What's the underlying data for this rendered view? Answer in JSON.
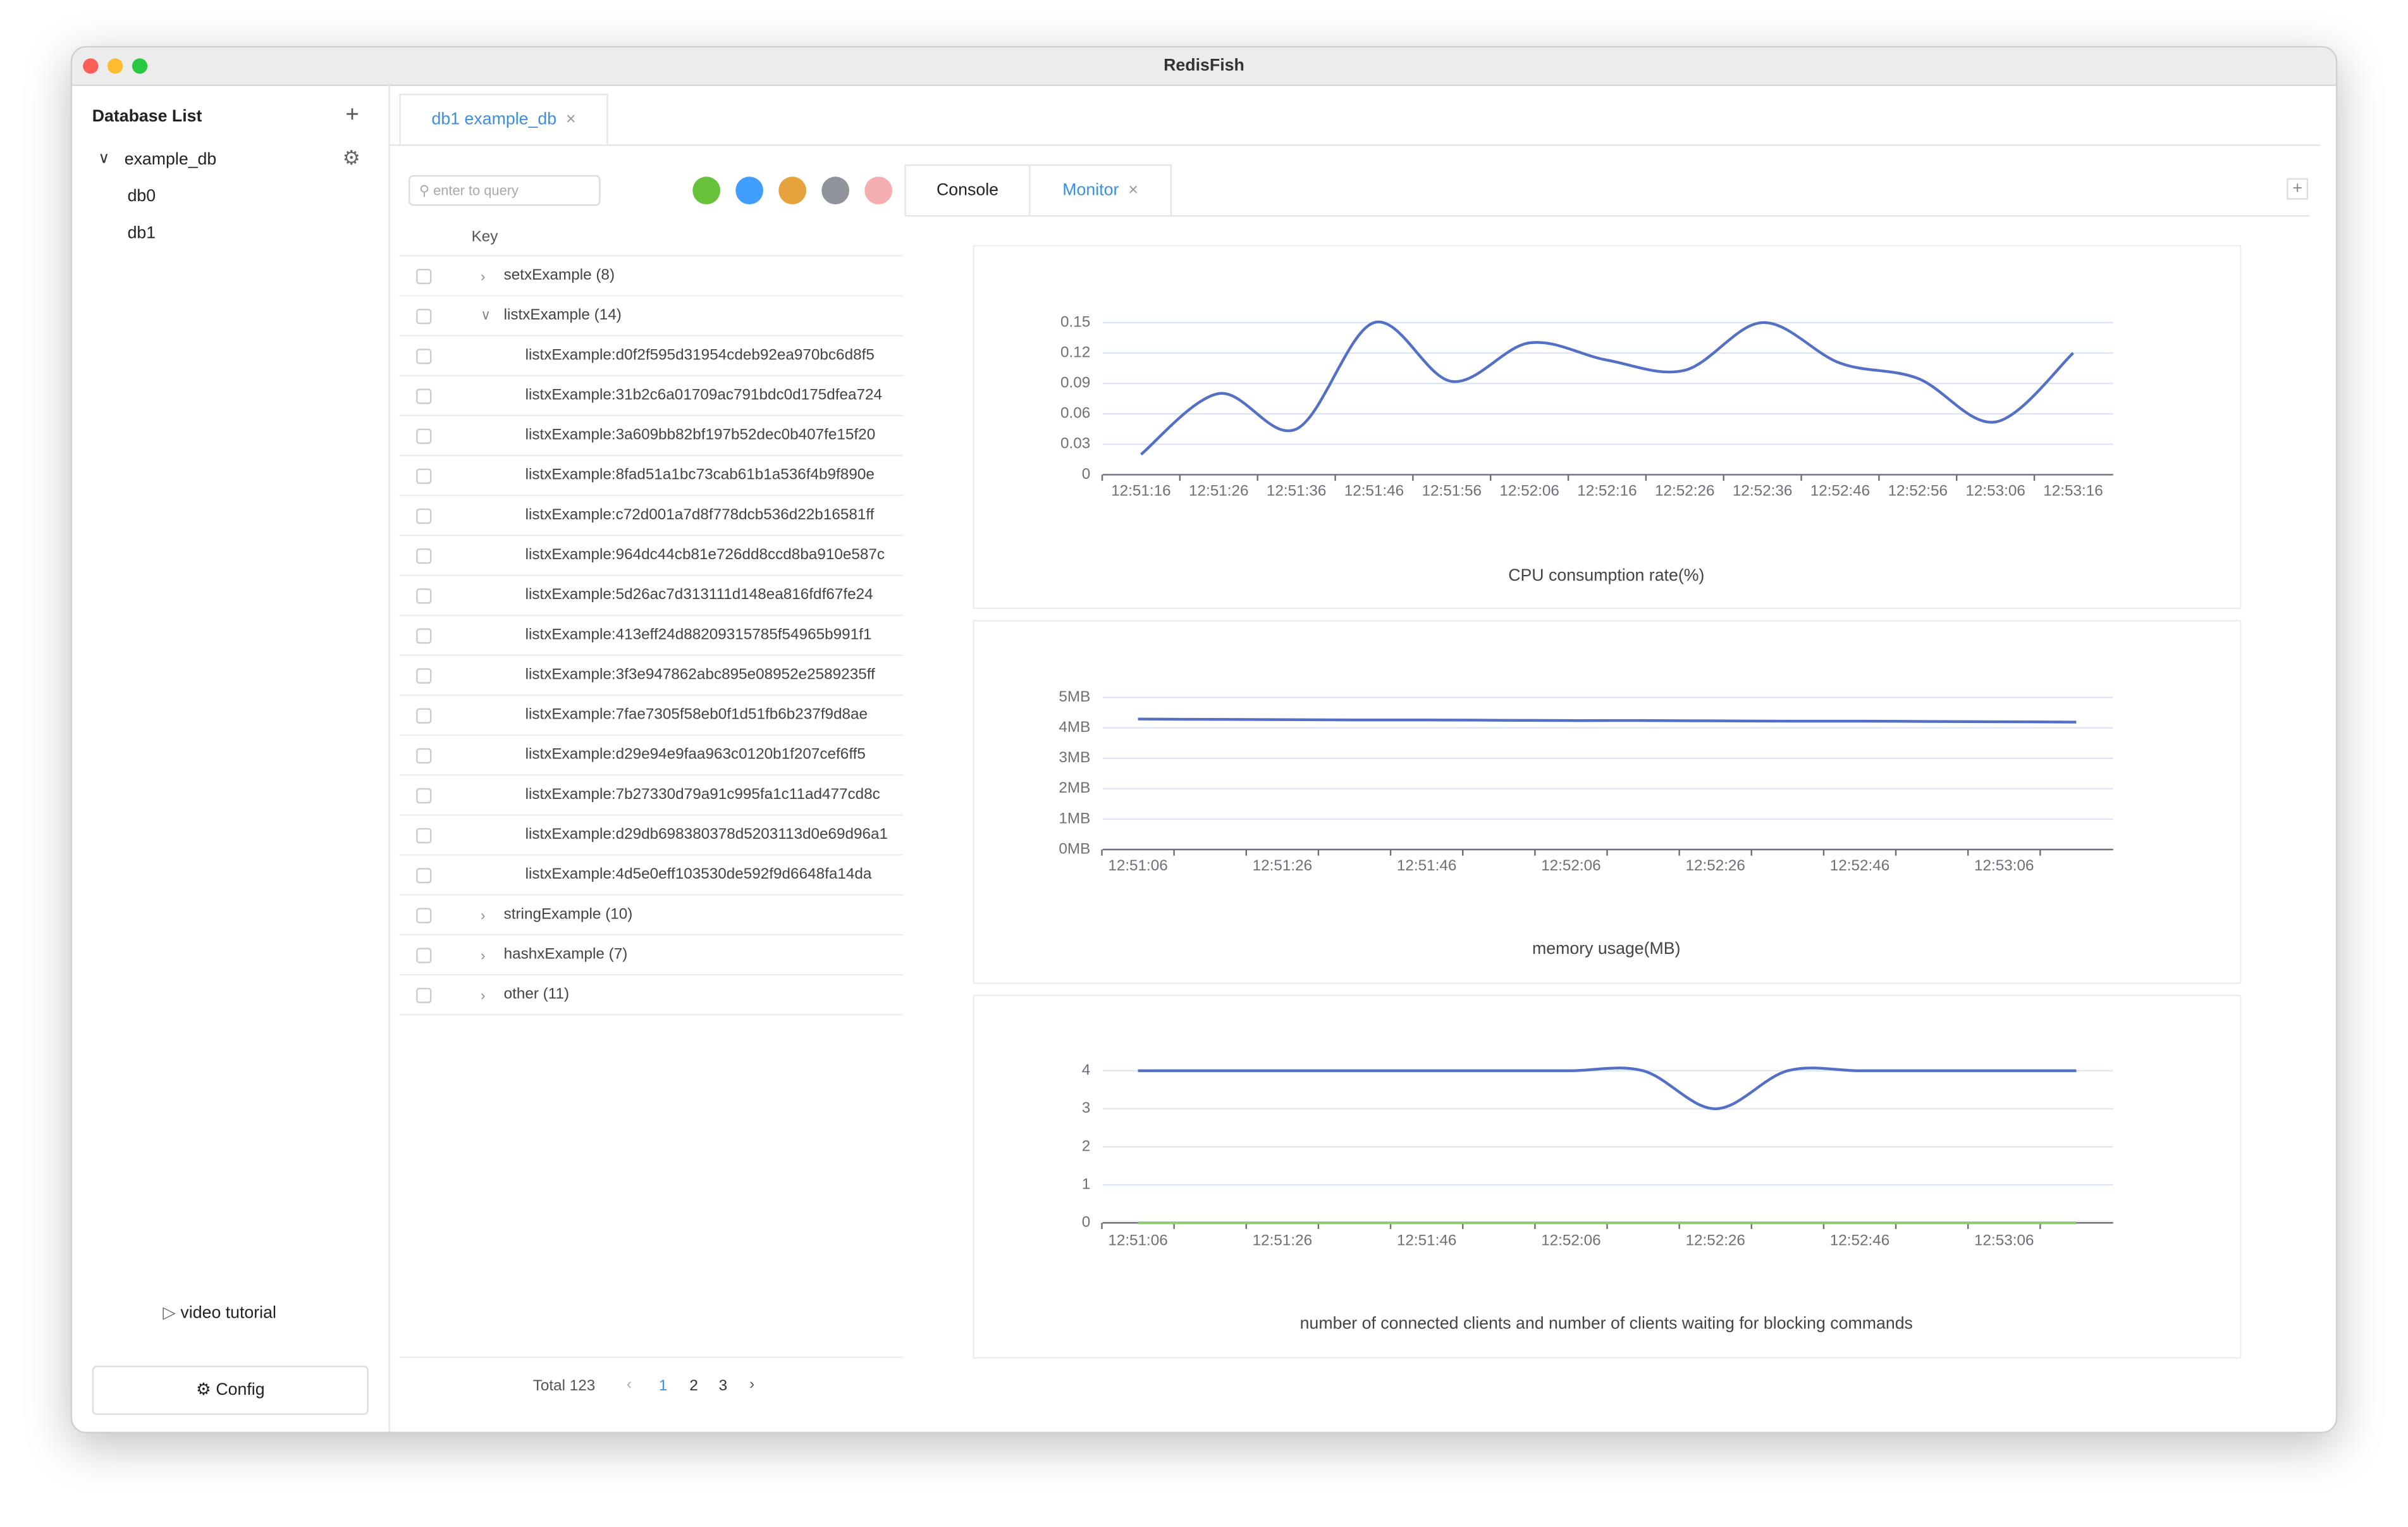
{
  "window": {
    "title": "RedisFish"
  },
  "sidebar": {
    "title": "Database List",
    "connection": "example_db",
    "databases": [
      "db0",
      "db1"
    ],
    "video_tutorial": "video tutorial",
    "config": "Config"
  },
  "tabs": [
    "db1 example_db"
  ],
  "keys": {
    "search_placeholder": "enter to query",
    "column": "Key",
    "groups": [
      {
        "label": "setxExample (8)"
      },
      {
        "label": "listxExample (14)",
        "children": [
          "listxExample:d0f2f595d31954cdeb92ea970bc6d8f5",
          "listxExample:31b2c6a01709ac791bdc0d175dfea724",
          "listxExample:3a609bb82bf197b52dec0b407fe15f20",
          "listxExample:8fad51a1bc73cab61b1a536f4b9f890e",
          "listxExample:c72d001a7d8f778dcb536d22b16581ff",
          "listxExample:964dc44cb81e726dd8ccd8ba910e587c",
          "listxExample:5d26ac7d313111d148ea816fdf67fe24",
          "listxExample:413eff24d88209315785f54965b991f1",
          "listxExample:3f3e947862abc895e08952e2589235ff",
          "listxExample:7fae7305f58eb0f1d51fb6b237f9d8ae",
          "listxExample:d29e94e9faa963c0120b1f207cef6ff5",
          "listxExample:7b27330d79a91c995fa1c11ad477cd8c",
          "listxExample:d29db698380378d5203113d0e69d96a1",
          "listxExample:4d5e0eff103530de592f9d6648fa14da"
        ]
      },
      {
        "label": "stringExample (10)"
      },
      {
        "label": "hashxExample (7)"
      },
      {
        "label": "other (11)"
      }
    ],
    "pagination": {
      "total": "Total 123",
      "pages": [
        1,
        2,
        3
      ]
    }
  },
  "sub_tabs": [
    "Console",
    "Monitor"
  ],
  "chart_data": [
    {
      "type": "line",
      "title": "CPU consumption rate(%)",
      "categories": [
        "12:51:16",
        "12:51:26",
        "12:51:36",
        "12:51:46",
        "12:51:56",
        "12:52:06",
        "12:52:16",
        "12:52:26",
        "12:52:36",
        "12:52:46",
        "12:52:56",
        "12:53:06",
        "12:53:16"
      ],
      "series": [
        {
          "color": "#5470c6",
          "values": [
            0.02,
            0.08,
            0.045,
            0.15,
            0.092,
            0.13,
            0.113,
            0.103,
            0.15,
            0.11,
            0.095,
            0.052,
            0.12
          ]
        }
      ],
      "ylim": [
        0,
        0.15
      ],
      "yticks": [
        0,
        0.03,
        0.06,
        0.09,
        0.12,
        0.15
      ],
      "grid": true
    },
    {
      "type": "line",
      "title": "memory usage(MB)",
      "categories": [
        "12:51:06",
        null,
        "12:51:26",
        null,
        "12:51:46",
        null,
        "12:52:06",
        null,
        "12:52:26",
        null,
        "12:52:46",
        null,
        "12:53:06",
        null
      ],
      "series": [
        {
          "color": "#5470c6",
          "values": [
            4.29,
            4.28,
            4.27,
            4.26,
            4.26,
            4.25,
            4.24,
            4.24,
            4.23,
            4.22,
            4.22,
            4.21,
            4.2,
            4.19
          ]
        }
      ],
      "ylim": [
        0,
        5
      ],
      "yticks": [
        {
          "value": 0,
          "label": "0MB"
        },
        {
          "value": 1,
          "label": "1MB"
        },
        {
          "value": 2,
          "label": "2MB"
        },
        {
          "value": 3,
          "label": "3MB"
        },
        {
          "value": 4,
          "label": "4MB"
        },
        {
          "value": 5,
          "label": "5MB"
        }
      ],
      "grid": true
    },
    {
      "type": "line",
      "title": "number of connected clients and number of clients waiting for blocking commands",
      "categories": [
        "12:51:06",
        null,
        "12:51:26",
        null,
        "12:51:46",
        null,
        "12:52:06",
        null,
        "12:52:26",
        null,
        "12:52:46",
        null,
        "12:53:06",
        null
      ],
      "series": [
        {
          "color": "#5470c6",
          "values": [
            4,
            4,
            4,
            4,
            4,
            4,
            4,
            4,
            3,
            4,
            4,
            4,
            4,
            4
          ]
        },
        {
          "color": "#91cc75",
          "values": [
            0,
            0,
            0,
            0,
            0,
            0,
            0,
            0,
            0,
            0,
            0,
            0,
            0,
            0
          ]
        }
      ],
      "ylim": [
        0,
        4
      ],
      "yticks": [
        0,
        1,
        2,
        3,
        4
      ],
      "grid": true
    }
  ]
}
